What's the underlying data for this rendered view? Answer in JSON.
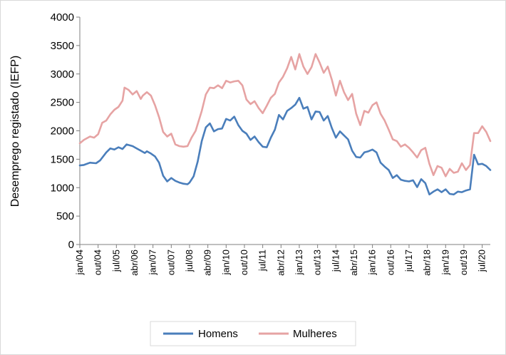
{
  "chart_data": {
    "type": "line",
    "title": "",
    "xlabel": "",
    "ylabel": "Desemprego registado (IEFP)",
    "ylim": [
      0,
      4000
    ],
    "yticks": [
      0,
      500,
      1000,
      1500,
      2000,
      2500,
      3000,
      3500,
      4000
    ],
    "x_start": "2004-01",
    "x_end": "2020-11",
    "x_tick_labels": [
      "jan/04",
      "out/04",
      "jul/05",
      "abr/06",
      "jan/07",
      "out/07",
      "jul/08",
      "abr/09",
      "jan/10",
      "out/10",
      "jul/11",
      "abr/12",
      "jan/13",
      "out/13",
      "jul/14",
      "abr/15",
      "jan/16",
      "out/16",
      "jul/17",
      "abr/18",
      "jan/19",
      "out/19",
      "jul/20"
    ],
    "grid": false,
    "legend_position": "bottom",
    "series": [
      {
        "name": "Homens",
        "color": "#4a7ebb",
        "points": [
          [
            "2004-01",
            1390
          ],
          [
            "2004-03",
            1400
          ],
          [
            "2004-06",
            1440
          ],
          [
            "2004-09",
            1430
          ],
          [
            "2004-11",
            1480
          ],
          [
            "2005-02",
            1620
          ],
          [
            "2005-04",
            1690
          ],
          [
            "2005-06",
            1670
          ],
          [
            "2005-08",
            1710
          ],
          [
            "2005-10",
            1680
          ],
          [
            "2005-12",
            1760
          ],
          [
            "2006-03",
            1730
          ],
          [
            "2006-05",
            1690
          ],
          [
            "2006-07",
            1650
          ],
          [
            "2006-09",
            1610
          ],
          [
            "2006-10",
            1640
          ],
          [
            "2006-12",
            1600
          ],
          [
            "2007-02",
            1550
          ],
          [
            "2007-04",
            1440
          ],
          [
            "2007-06",
            1210
          ],
          [
            "2007-08",
            1110
          ],
          [
            "2007-10",
            1170
          ],
          [
            "2007-12",
            1120
          ],
          [
            "2008-02",
            1090
          ],
          [
            "2008-04",
            1070
          ],
          [
            "2008-06",
            1060
          ],
          [
            "2008-07",
            1090
          ],
          [
            "2008-09",
            1200
          ],
          [
            "2008-11",
            1460
          ],
          [
            "2009-01",
            1820
          ],
          [
            "2009-03",
            2060
          ],
          [
            "2009-05",
            2130
          ],
          [
            "2009-07",
            1990
          ],
          [
            "2009-09",
            2030
          ],
          [
            "2009-11",
            2040
          ],
          [
            "2010-01",
            2210
          ],
          [
            "2010-03",
            2180
          ],
          [
            "2010-05",
            2250
          ],
          [
            "2010-07",
            2100
          ],
          [
            "2010-09",
            2000
          ],
          [
            "2010-11",
            1950
          ],
          [
            "2011-01",
            1840
          ],
          [
            "2011-03",
            1900
          ],
          [
            "2011-05",
            1800
          ],
          [
            "2011-07",
            1720
          ],
          [
            "2011-09",
            1710
          ],
          [
            "2011-11",
            1880
          ],
          [
            "2012-01",
            2020
          ],
          [
            "2012-03",
            2280
          ],
          [
            "2012-05",
            2200
          ],
          [
            "2012-07",
            2350
          ],
          [
            "2012-09",
            2400
          ],
          [
            "2012-11",
            2460
          ],
          [
            "2013-01",
            2580
          ],
          [
            "2013-03",
            2390
          ],
          [
            "2013-05",
            2420
          ],
          [
            "2013-07",
            2200
          ],
          [
            "2013-09",
            2340
          ],
          [
            "2013-11",
            2330
          ],
          [
            "2014-01",
            2180
          ],
          [
            "2014-03",
            2260
          ],
          [
            "2014-05",
            2050
          ],
          [
            "2014-07",
            1880
          ],
          [
            "2014-09",
            1990
          ],
          [
            "2014-11",
            1920
          ],
          [
            "2015-01",
            1850
          ],
          [
            "2015-03",
            1650
          ],
          [
            "2015-05",
            1540
          ],
          [
            "2015-07",
            1530
          ],
          [
            "2015-09",
            1620
          ],
          [
            "2015-11",
            1640
          ],
          [
            "2016-01",
            1670
          ],
          [
            "2016-03",
            1620
          ],
          [
            "2016-05",
            1440
          ],
          [
            "2016-07",
            1370
          ],
          [
            "2016-09",
            1310
          ],
          [
            "2016-11",
            1170
          ],
          [
            "2017-01",
            1220
          ],
          [
            "2017-03",
            1140
          ],
          [
            "2017-05",
            1120
          ],
          [
            "2017-07",
            1110
          ],
          [
            "2017-09",
            1130
          ],
          [
            "2017-11",
            1010
          ],
          [
            "2018-01",
            1150
          ],
          [
            "2018-03",
            1080
          ],
          [
            "2018-05",
            880
          ],
          [
            "2018-07",
            930
          ],
          [
            "2018-09",
            970
          ],
          [
            "2018-11",
            920
          ],
          [
            "2019-01",
            970
          ],
          [
            "2019-03",
            890
          ],
          [
            "2019-05",
            880
          ],
          [
            "2019-07",
            930
          ],
          [
            "2019-09",
            920
          ],
          [
            "2019-11",
            950
          ],
          [
            "2020-01",
            970
          ],
          [
            "2020-03",
            1580
          ],
          [
            "2020-05",
            1410
          ],
          [
            "2020-07",
            1420
          ],
          [
            "2020-09",
            1380
          ],
          [
            "2020-11",
            1310
          ]
        ]
      },
      {
        "name": "Mulheres",
        "color": "#e6a3a3",
        "points": [
          [
            "2004-01",
            1780
          ],
          [
            "2004-03",
            1840
          ],
          [
            "2004-06",
            1900
          ],
          [
            "2004-08",
            1880
          ],
          [
            "2004-10",
            1940
          ],
          [
            "2004-12",
            2140
          ],
          [
            "2005-02",
            2180
          ],
          [
            "2005-04",
            2290
          ],
          [
            "2005-06",
            2370
          ],
          [
            "2005-08",
            2420
          ],
          [
            "2005-10",
            2530
          ],
          [
            "2005-11",
            2760
          ],
          [
            "2006-01",
            2720
          ],
          [
            "2006-03",
            2640
          ],
          [
            "2006-05",
            2700
          ],
          [
            "2006-07",
            2560
          ],
          [
            "2006-08",
            2620
          ],
          [
            "2006-10",
            2680
          ],
          [
            "2006-12",
            2620
          ],
          [
            "2007-02",
            2450
          ],
          [
            "2007-04",
            2240
          ],
          [
            "2007-06",
            1980
          ],
          [
            "2007-08",
            1900
          ],
          [
            "2007-10",
            1950
          ],
          [
            "2007-12",
            1760
          ],
          [
            "2008-02",
            1730
          ],
          [
            "2008-04",
            1720
          ],
          [
            "2008-06",
            1730
          ],
          [
            "2008-08",
            1880
          ],
          [
            "2008-10",
            2000
          ],
          [
            "2009-01",
            2350
          ],
          [
            "2009-03",
            2640
          ],
          [
            "2009-05",
            2760
          ],
          [
            "2009-07",
            2750
          ],
          [
            "2009-09",
            2800
          ],
          [
            "2009-11",
            2750
          ],
          [
            "2010-01",
            2880
          ],
          [
            "2010-03",
            2850
          ],
          [
            "2010-05",
            2870
          ],
          [
            "2010-07",
            2880
          ],
          [
            "2010-09",
            2800
          ],
          [
            "2010-11",
            2550
          ],
          [
            "2011-01",
            2470
          ],
          [
            "2011-03",
            2520
          ],
          [
            "2011-05",
            2400
          ],
          [
            "2011-07",
            2310
          ],
          [
            "2011-09",
            2440
          ],
          [
            "2011-11",
            2580
          ],
          [
            "2012-01",
            2650
          ],
          [
            "2012-03",
            2850
          ],
          [
            "2012-05",
            2950
          ],
          [
            "2012-07",
            3100
          ],
          [
            "2012-09",
            3300
          ],
          [
            "2012-11",
            3080
          ],
          [
            "2013-01",
            3350
          ],
          [
            "2013-03",
            3130
          ],
          [
            "2013-05",
            3000
          ],
          [
            "2013-07",
            3120
          ],
          [
            "2013-09",
            3350
          ],
          [
            "2013-11",
            3200
          ],
          [
            "2014-01",
            3020
          ],
          [
            "2014-03",
            3130
          ],
          [
            "2014-05",
            2900
          ],
          [
            "2014-07",
            2620
          ],
          [
            "2014-09",
            2880
          ],
          [
            "2014-11",
            2680
          ],
          [
            "2015-01",
            2540
          ],
          [
            "2015-03",
            2650
          ],
          [
            "2015-05",
            2300
          ],
          [
            "2015-07",
            2100
          ],
          [
            "2015-09",
            2350
          ],
          [
            "2015-11",
            2320
          ],
          [
            "2016-01",
            2450
          ],
          [
            "2016-03",
            2500
          ],
          [
            "2016-05",
            2300
          ],
          [
            "2016-07",
            2180
          ],
          [
            "2016-09",
            2020
          ],
          [
            "2016-11",
            1850
          ],
          [
            "2017-01",
            1820
          ],
          [
            "2017-03",
            1720
          ],
          [
            "2017-05",
            1760
          ],
          [
            "2017-07",
            1700
          ],
          [
            "2017-09",
            1620
          ],
          [
            "2017-11",
            1530
          ],
          [
            "2018-01",
            1660
          ],
          [
            "2018-03",
            1700
          ],
          [
            "2018-05",
            1420
          ],
          [
            "2018-07",
            1220
          ],
          [
            "2018-09",
            1380
          ],
          [
            "2018-11",
            1350
          ],
          [
            "2019-01",
            1200
          ],
          [
            "2019-03",
            1330
          ],
          [
            "2019-05",
            1260
          ],
          [
            "2019-07",
            1280
          ],
          [
            "2019-09",
            1430
          ],
          [
            "2019-11",
            1310
          ],
          [
            "2020-01",
            1400
          ],
          [
            "2020-03",
            1960
          ],
          [
            "2020-05",
            1960
          ],
          [
            "2020-07",
            2080
          ],
          [
            "2020-09",
            1980
          ],
          [
            "2020-11",
            1820
          ]
        ]
      }
    ]
  }
}
